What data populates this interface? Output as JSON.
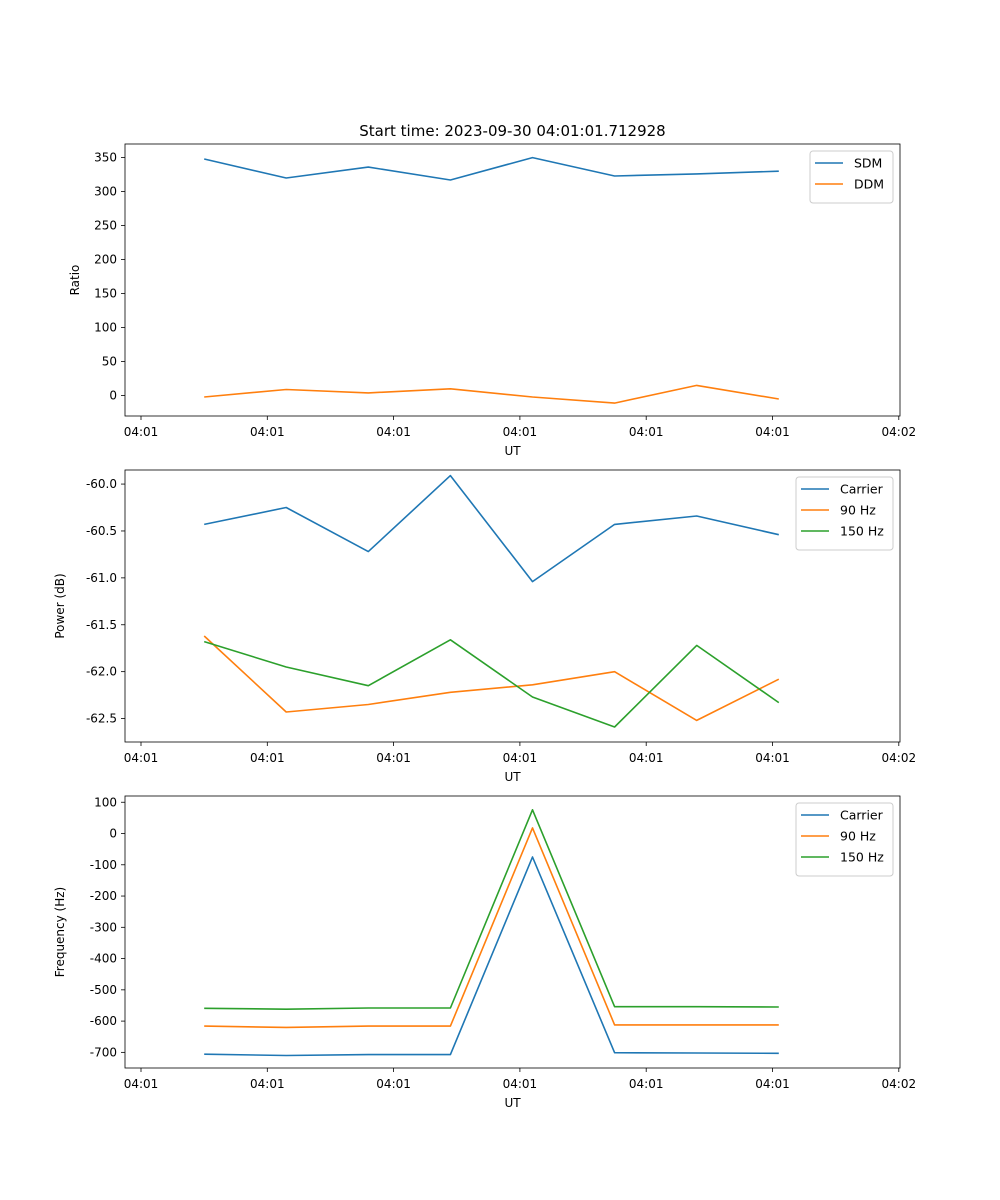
{
  "chart_data": [
    {
      "type": "line",
      "title": "Start time: 2023-09-30 04:01:01.712928",
      "xlabel": "UT",
      "ylabel": "Ratio",
      "x_ticks": [
        "04:01",
        "04:01",
        "04:01",
        "04:01",
        "04:01",
        "04:01",
        "04:02"
      ],
      "y_ticks": [
        0,
        50,
        100,
        150,
        200,
        250,
        300,
        350
      ],
      "ylim": [
        -30,
        370
      ],
      "grid": false,
      "legend_position": "top-right",
      "x": [
        0.5,
        1.15,
        1.8,
        2.45,
        3.1,
        3.75,
        4.4,
        5.05
      ],
      "series": [
        {
          "name": "SDM",
          "color": "#1f77b4",
          "values": [
            348,
            320,
            336,
            317,
            350,
            323,
            326,
            330
          ]
        },
        {
          "name": "DDM",
          "color": "#ff7f0e",
          "values": [
            -2,
            9,
            4,
            10,
            -2,
            -11,
            15,
            -5
          ]
        }
      ]
    },
    {
      "type": "line",
      "title": "",
      "xlabel": "UT",
      "ylabel": "Power (dB)",
      "x_ticks": [
        "04:01",
        "04:01",
        "04:01",
        "04:01",
        "04:01",
        "04:01",
        "04:02"
      ],
      "y_ticks": [
        "-60.0",
        "-60.5",
        "-61.0",
        "-61.5",
        "-62.0",
        "-62.5"
      ],
      "ylim": [
        -62.75,
        -59.85
      ],
      "grid": false,
      "legend_position": "top-right",
      "x": [
        0.5,
        1.15,
        1.8,
        2.45,
        3.1,
        3.75,
        4.4,
        5.05
      ],
      "series": [
        {
          "name": "Carrier",
          "color": "#1f77b4",
          "values": [
            -60.43,
            -60.25,
            -60.72,
            -59.91,
            -61.04,
            -60.43,
            -60.34,
            -60.54
          ]
        },
        {
          "name": "90 Hz",
          "color": "#ff7f0e",
          "values": [
            -61.62,
            -62.43,
            -62.35,
            -62.22,
            -62.14,
            -62.0,
            -62.52,
            -62.08
          ]
        },
        {
          "name": "150 Hz",
          "color": "#2ca02c",
          "values": [
            -61.68,
            -61.95,
            -62.15,
            -61.66,
            -62.27,
            -62.59,
            -61.72,
            -62.33
          ]
        }
      ]
    },
    {
      "type": "line",
      "title": "",
      "xlabel": "UT",
      "ylabel": "Frequency (Hz)",
      "x_ticks": [
        "04:01",
        "04:01",
        "04:01",
        "04:01",
        "04:01",
        "04:01",
        "04:02"
      ],
      "y_ticks": [
        100,
        0,
        -100,
        -200,
        -300,
        -400,
        -500,
        -600,
        -700
      ],
      "ylim": [
        -750,
        120
      ],
      "grid": false,
      "legend_position": "top-right",
      "x": [
        0.5,
        1.15,
        1.8,
        2.45,
        3.1,
        3.75,
        4.4,
        5.05
      ],
      "series": [
        {
          "name": "Carrier",
          "color": "#1f77b4",
          "values": [
            -706,
            -710,
            -707,
            -707,
            -75,
            -701,
            -702,
            -703
          ]
        },
        {
          "name": "90 Hz",
          "color": "#ff7f0e",
          "values": [
            -616,
            -620,
            -616,
            -616,
            18,
            -612,
            -612,
            -612
          ]
        },
        {
          "name": "150 Hz",
          "color": "#2ca02c",
          "values": [
            -559,
            -562,
            -558,
            -558,
            76,
            -554,
            -554,
            -555
          ]
        }
      ]
    }
  ]
}
